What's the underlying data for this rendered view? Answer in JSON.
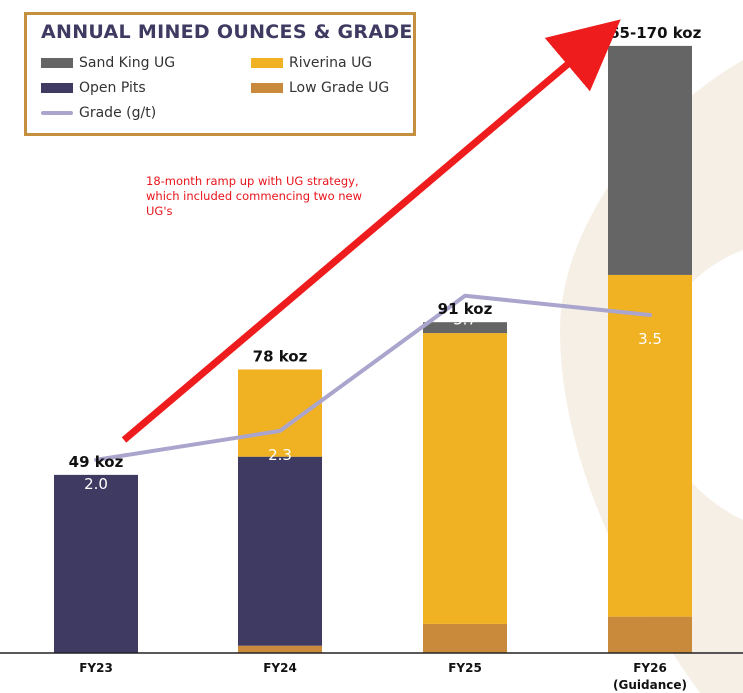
{
  "chart_data": {
    "type": "bar",
    "title": "ANNUAL MINED OUNCES & GRADE",
    "categories": [
      "FY23",
      "FY24",
      "FY25",
      "FY26"
    ],
    "category_sublabels": [
      "",
      "",
      "",
      "(Guidance)"
    ],
    "stacked": true,
    "series": [
      {
        "name": "Low Grade UG",
        "color": "#c98a3c",
        "values": [
          0,
          2,
          8,
          10
        ]
      },
      {
        "name": "Open Pits",
        "color": "#3e3a62",
        "values": [
          49,
          52,
          0,
          0
        ]
      },
      {
        "name": "Riverina UG",
        "color": "#f0b223",
        "values": [
          0,
          24,
          80,
          94
        ]
      },
      {
        "name": "Sand King UG",
        "color": "#656565",
        "values": [
          0,
          0,
          3,
          63
        ]
      }
    ],
    "bar_totals": [
      "49 koz",
      "78 koz",
      "91 koz",
      "165-170 koz"
    ],
    "grade": {
      "name": "Grade (g/t)",
      "color": "#aaa5cc",
      "values": [
        2.0,
        2.3,
        3.7,
        3.5
      ],
      "labels": [
        "2.0",
        "2.3",
        "3.7",
        "3.5"
      ]
    },
    "annotation": [
      "18-month ramp up with UG strategy,",
      "which included commencing two new",
      "UG's"
    ],
    "annotation_color": "#e8141b",
    "legend": {
      "placement": "top-left",
      "order": [
        "Sand King UG",
        "Riverina UG",
        "Open Pits",
        "Low Grade UG",
        "Grade (g/t)"
      ]
    },
    "ylim": [
      0,
      170
    ],
    "grid": false,
    "xlabel": "",
    "ylabel": ""
  }
}
